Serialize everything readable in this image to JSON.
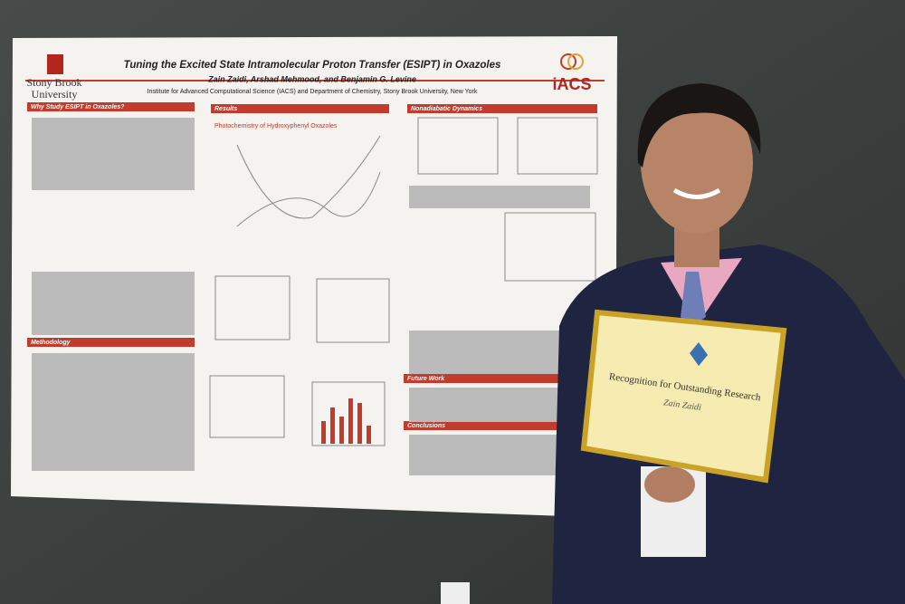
{
  "poster": {
    "title": "Tuning the Excited State Intramolecular Proton Transfer (ESIPT) in Oxazoles",
    "authors": "Zain Zaidi, Arshad Mehmood, and Benjamin G. Levine",
    "affiliation": "Institute for Advanced Computational Science (IACS) and Department of Chemistry, Stony Brook University, New York",
    "left_logo": [
      "Stony Brook",
      "University"
    ],
    "right_logo": "iACS",
    "subheading": "Photochemistry of Hydroxyphenyl Oxazoles",
    "sections": [
      "Why Study ESIPT in Oxazoles?",
      "Results",
      "Nonadiabatic Dynamics",
      "Methodology",
      "Future Work",
      "Conclusions"
    ]
  },
  "certificate": {
    "title": "Recognition for Outstanding Research",
    "name": "Zain Zaidi"
  }
}
